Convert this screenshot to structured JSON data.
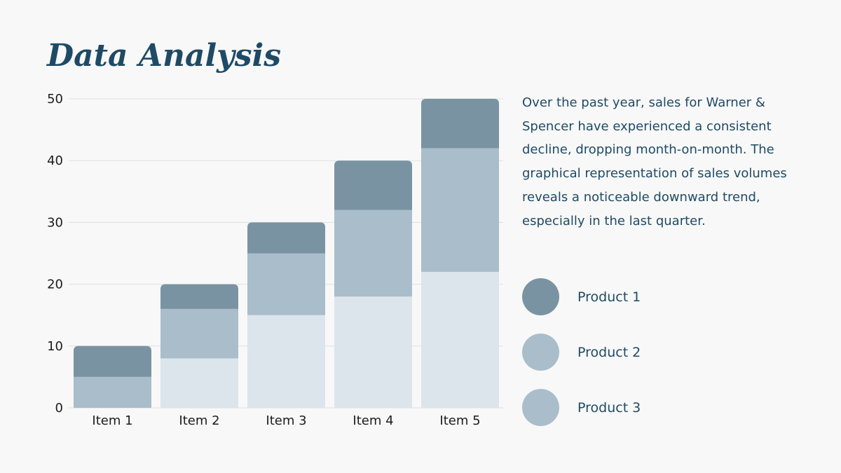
{
  "slide": {
    "title": "Data Analysis",
    "description": "Over the past year, sales for Warner & Spencer have experienced a consistent decline, dropping month-on-month. The graphical representation of sales volumes reveals a noticeable downward trend, especially in the last quarter."
  },
  "legend": [
    {
      "label": "Product 1",
      "color": "#7a93a2"
    },
    {
      "label": "Product 2",
      "color": "#a9bdca"
    },
    {
      "label": "Product 3",
      "color": "#a9bdca"
    }
  ],
  "chart_data": {
    "type": "bar",
    "stacked": true,
    "title": "",
    "xlabel": "",
    "ylabel": "",
    "categories": [
      "Item 1",
      "Item 2",
      "Item 3",
      "Item 4",
      "Item 5"
    ],
    "series": [
      {
        "name": "Product 3",
        "values": [
          0,
          8,
          15,
          18,
          22
        ],
        "color": "#dde5ec"
      },
      {
        "name": "Product 2",
        "values": [
          5,
          8,
          10,
          14,
          20
        ],
        "color": "#a9bdca"
      },
      {
        "name": "Product 1",
        "values": [
          5,
          4,
          5,
          8,
          8
        ],
        "color": "#7a93a2"
      }
    ],
    "ylim": [
      0,
      50
    ],
    "yticks": [
      0,
      10,
      20,
      30,
      40,
      50
    ],
    "grid": true,
    "legend_position": "right"
  }
}
